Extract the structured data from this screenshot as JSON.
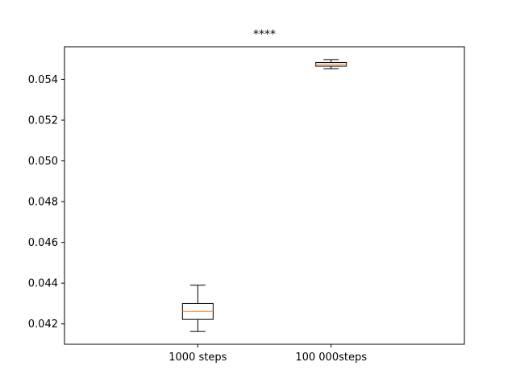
{
  "chart_data": {
    "type": "box",
    "title": "****",
    "xlabel": "",
    "ylabel": "",
    "ylim": [
      0.041,
      0.0556
    ],
    "yticks": [
      "0.042",
      "0.044",
      "0.046",
      "0.048",
      "0.050",
      "0.052",
      "0.054"
    ],
    "categories": [
      "1000 steps",
      "100 000steps"
    ],
    "boxes": [
      {
        "label": "1000 steps",
        "whisker_low": 0.04163,
        "q1": 0.04222,
        "median": 0.04261,
        "q3": 0.043,
        "whisker_high": 0.0439
      },
      {
        "label": "100 000steps",
        "whisker_low": 0.05452,
        "q1": 0.05465,
        "median": 0.05475,
        "q3": 0.05483,
        "whisker_high": 0.05497
      }
    ],
    "grid": false,
    "colors": {
      "box": "#000000",
      "median": "#ff7f0e"
    }
  }
}
